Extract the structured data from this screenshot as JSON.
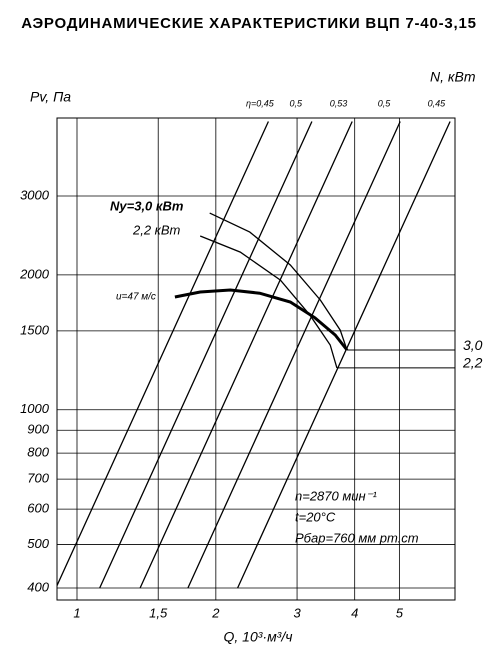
{
  "chart_data": {
    "type": "line",
    "title": "АЭРОДИНАМИЧЕСКИЕ ХАРАКТЕРИСТИКИ ВЦП 7-40-3,15",
    "y_label": "Pv, Па",
    "y2_label": "N, кВт",
    "x_label": "Q, 10³·м³/ч",
    "log_x": true,
    "log_y": true,
    "grid": true,
    "color": "#000000",
    "xlim": [
      0.905,
      6.6
    ],
    "ylim": [
      376,
      4480
    ],
    "xticks": [
      1,
      {
        "value": 1.5,
        "label": "1,5"
      },
      2,
      3,
      4,
      5
    ],
    "yticks": [
      400,
      500,
      600,
      700,
      800,
      900,
      1000,
      1500,
      2000,
      3000
    ],
    "series": [
      {
        "name": "u=47 м/с",
        "kind": "pressure",
        "x": [
          1.63,
          1.85,
          2.15,
          2.49,
          2.9,
          3.28,
          3.63,
          3.85
        ],
        "values": [
          1785,
          1832,
          1850,
          1820,
          1740,
          1604,
          1468,
          1359
        ]
      },
      {
        "name": "Ny=3,0 кВт",
        "kind": "power",
        "end_label": "3,0",
        "x": [
          1.94,
          2.37,
          2.9,
          3.37,
          3.72,
          3.85
        ],
        "values": [
          2748,
          2492,
          2104,
          1757,
          1506,
          1359
        ]
      },
      {
        "name": "2,2 кВт",
        "kind": "power",
        "end_label": "2,2",
        "x": [
          1.85,
          2.26,
          2.76,
          3.2,
          3.54,
          3.66
        ],
        "values": [
          2442,
          2249,
          1947,
          1626,
          1395,
          1240
        ]
      },
      {
        "name": "η=0,45",
        "kind": "efficiency",
        "x": [
          0.9,
          2.6
        ],
        "values": [
          400,
          4400
        ]
      },
      {
        "name": "0,5",
        "kind": "efficiency",
        "x": [
          1.12,
          3.23
        ],
        "values": [
          400,
          4400
        ]
      },
      {
        "name": "0,53",
        "kind": "efficiency",
        "x": [
          1.37,
          3.95
        ],
        "values": [
          400,
          4400
        ]
      },
      {
        "name": "0,5",
        "kind": "efficiency",
        "x": [
          1.74,
          5.02
        ],
        "values": [
          400,
          4400
        ]
      },
      {
        "name": "0,45",
        "kind": "efficiency",
        "x": [
          2.23,
          6.44
        ],
        "values": [
          400,
          4400
        ]
      }
    ],
    "annotations": [
      "n=2870 мин⁻¹",
      "t=20°C",
      "Рбар=760 мм рт.ст"
    ]
  }
}
